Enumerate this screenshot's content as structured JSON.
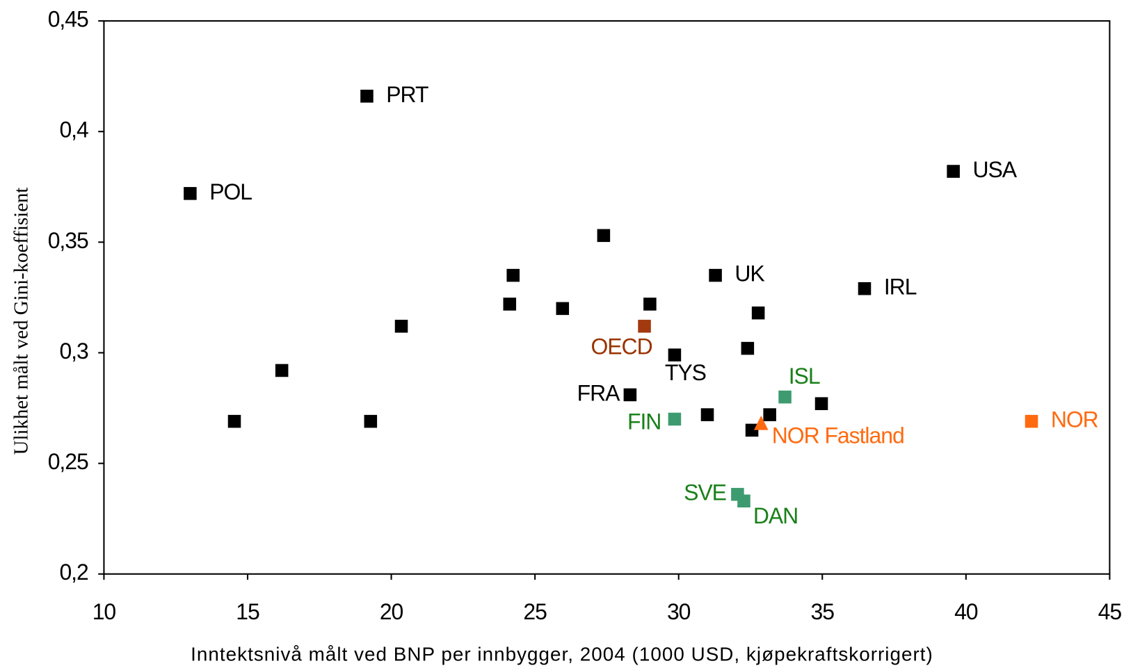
{
  "chart_data": {
    "type": "scatter",
    "x_label": "Inntektsnivå målt ved BNP per  innbygger, 2004  (1000 USD, kjøpekraftskorrigert)",
    "y_label": "Ulikhet målt ved Gini-koeffisient",
    "xlim": [
      10,
      45
    ],
    "xticks": [
      10,
      15,
      20,
      25,
      30,
      35,
      40,
      45
    ],
    "ylim": [
      0.2,
      0.45
    ],
    "yticks": [
      {
        "value": 0.2,
        "label": "0,2"
      },
      {
        "value": 0.25,
        "label": "0,25"
      },
      {
        "value": 0.3,
        "label": "0,3"
      },
      {
        "value": 0.35,
        "label": "0,35"
      },
      {
        "value": 0.4,
        "label": "0,4"
      },
      {
        "value": 0.45,
        "label": "0,45"
      }
    ],
    "series": [
      {
        "color": "#000000",
        "marker": "square",
        "x": [
          19.15,
          13.0,
          39.56,
          27.39,
          24.24,
          31.28,
          36.47,
          24.12,
          29.0,
          25.96,
          32.77,
          20.35,
          32.4,
          29.86,
          16.19,
          28.31,
          34.97,
          31.0,
          33.17,
          14.54,
          19.28,
          32.55
        ],
        "values": [
          0.416,
          0.372,
          0.382,
          0.353,
          0.335,
          0.335,
          0.329,
          0.322,
          0.322,
          0.32,
          0.318,
          0.312,
          0.302,
          0.299,
          0.292,
          0.281,
          0.277,
          0.272,
          0.272,
          0.269,
          0.269,
          0.265
        ],
        "labels": [
          "PRT",
          "POL",
          "USA",
          null,
          null,
          "UK",
          "IRL",
          null,
          null,
          null,
          null,
          null,
          null,
          "TYS",
          null,
          "FRA",
          null,
          null,
          null,
          null,
          null,
          null
        ]
      },
      {
        "color": "#a33a0f",
        "label_color": "#993300",
        "marker": "square",
        "x": [
          28.81
        ],
        "values": [
          0.312
        ],
        "labels": [
          "OECD"
        ]
      },
      {
        "color": "#3d9b6f",
        "label_color": "#1a801a",
        "marker": "square",
        "x": [
          29.86,
          33.7,
          32.05,
          32.27
        ],
        "values": [
          0.27,
          0.28,
          0.236,
          0.233
        ],
        "labels": [
          "FIN",
          "ISL",
          "SVE",
          "DAN"
        ]
      },
      {
        "color": "#ff6a10",
        "marker": "square",
        "x": [
          42.28
        ],
        "values": [
          0.269
        ],
        "labels": [
          "NOR"
        ]
      },
      {
        "color": "#ff6a10",
        "marker": "triangle",
        "x": [
          32.87
        ],
        "values": [
          0.268
        ],
        "labels": [
          "NOR Fastland"
        ]
      }
    ]
  }
}
